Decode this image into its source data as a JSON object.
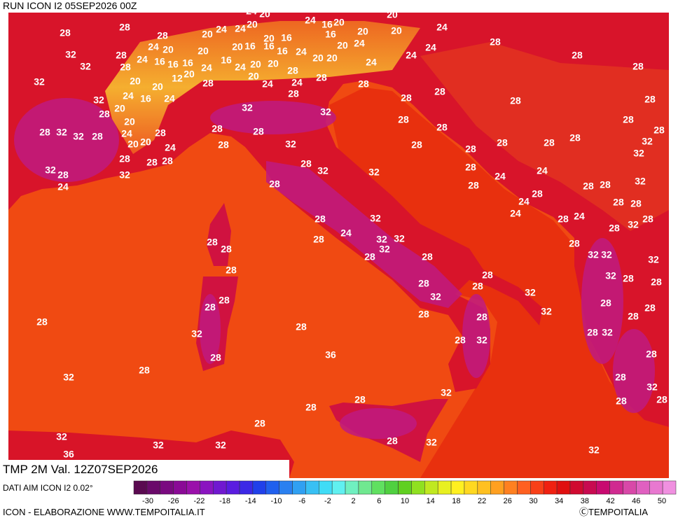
{
  "header": {
    "title": "RUN ICON I2 05SEP2026 00Z"
  },
  "footer": {
    "variable": "TMP 2M Val. 12Z07SEP2026",
    "source": "DATI AIM ICON I2 0.02°",
    "credit": "ICON - ELABORAZIONE WWW.TEMPOITALIA.IT",
    "brand": "ⒸTEMPOITALIA"
  },
  "colorbar": {
    "colors": [
      "#5a0a50",
      "#6a0a6a",
      "#7a0a80",
      "#8a0a96",
      "#9a10aa",
      "#8a14c0",
      "#7018d0",
      "#5a1ce0",
      "#3c28e6",
      "#2040ea",
      "#2060ee",
      "#2a80f0",
      "#30a0f2",
      "#38c0f4",
      "#40dcf6",
      "#60f0f0",
      "#70f0c0",
      "#70e890",
      "#60e060",
      "#50d040",
      "#60d020",
      "#90e020",
      "#c0e820",
      "#e8f020",
      "#fff020",
      "#ffd820",
      "#ffc020",
      "#ffa020",
      "#ff8020",
      "#ff6020",
      "#f84018",
      "#f02010",
      "#e01010",
      "#d00a30",
      "#c80a50",
      "#c80a70",
      "#d02a90",
      "#d848a8",
      "#e060c0",
      "#e878d0",
      "#f090e0"
    ],
    "ticks": [
      -30,
      -26,
      -22,
      -18,
      -14,
      -10,
      -6,
      -2,
      2,
      6,
      10,
      14,
      18,
      22,
      26,
      30,
      34,
      38,
      42,
      46,
      50
    ]
  },
  "map": {
    "labels": [
      28,
      28,
      28,
      32,
      32,
      32,
      28,
      28,
      24,
      20,
      24,
      16,
      16,
      16,
      20,
      20,
      12,
      20,
      24,
      20,
      20,
      24,
      24,
      20,
      24,
      20,
      20,
      16,
      24,
      16,
      20,
      16,
      20,
      20,
      20,
      24,
      20,
      16,
      16,
      16,
      24,
      20,
      20,
      20,
      24,
      16,
      24,
      20,
      20,
      28,
      20,
      24,
      24,
      28,
      28,
      28,
      24,
      24,
      32,
      16,
      28,
      20,
      20,
      24,
      28,
      32,
      32,
      28,
      28,
      20,
      20,
      24,
      28,
      28,
      28,
      32,
      28,
      24,
      32,
      28,
      28,
      28,
      32,
      32,
      32,
      28,
      24,
      24,
      24,
      28,
      28,
      28,
      28,
      28,
      28,
      28,
      28,
      28,
      28,
      28,
      28,
      28,
      28,
      28,
      28,
      32,
      32,
      28,
      32,
      32,
      28,
      28,
      24,
      28,
      24,
      28,
      28,
      32,
      28,
      24,
      24,
      28,
      28,
      28,
      24,
      28,
      32,
      28,
      28,
      28,
      28,
      28,
      24,
      32,
      32,
      32,
      32,
      28,
      28,
      28,
      32,
      32,
      32,
      28,
      28,
      28,
      28,
      32,
      32,
      32,
      28,
      28,
      28,
      28,
      28,
      28,
      28,
      28,
      28,
      32,
      28,
      28,
      32,
      28,
      32,
      28,
      28,
      28,
      32,
      28,
      32,
      36,
      28,
      32,
      28,
      28,
      32,
      28,
      28,
      28,
      32,
      32,
      32,
      28,
      32,
      32,
      36
    ]
  }
}
